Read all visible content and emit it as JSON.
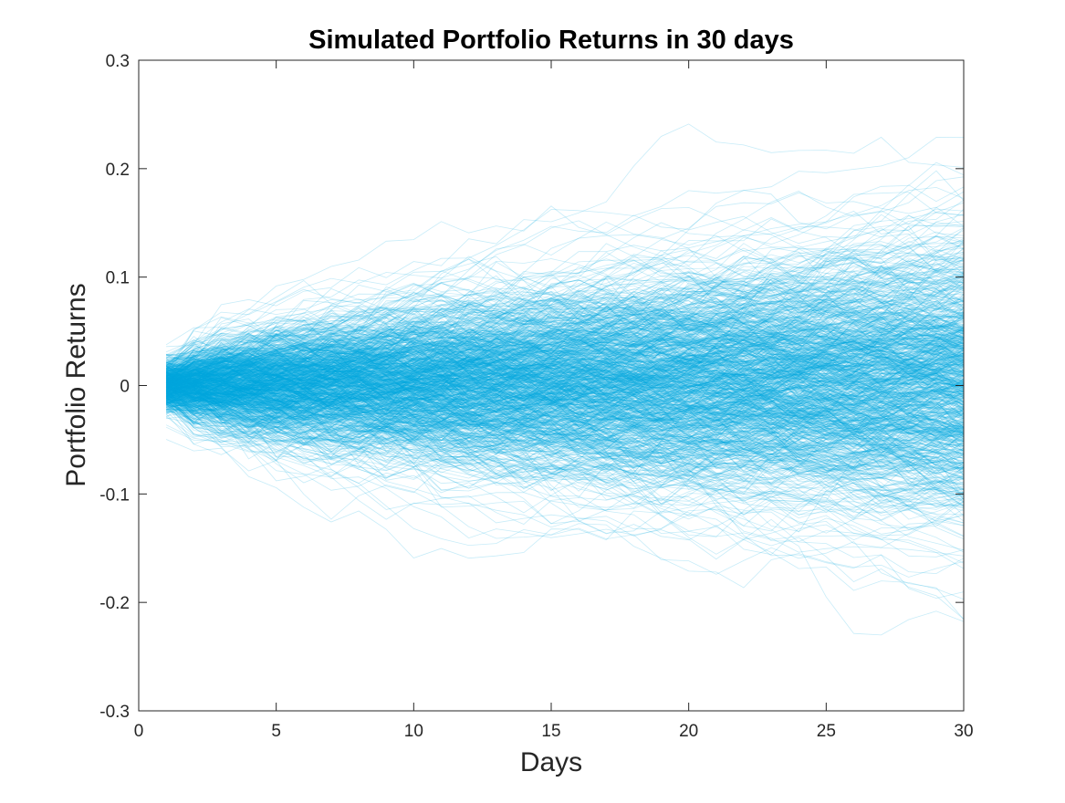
{
  "chart_data": {
    "type": "line",
    "title": "Simulated Portfolio Returns in 30 days",
    "xlabel": "Days",
    "ylabel": "Portfolio Returns",
    "xlim": [
      0,
      30
    ],
    "ylim": [
      -0.3,
      0.3
    ],
    "x_ticks": [
      0,
      5,
      10,
      15,
      20,
      25,
      30
    ],
    "y_ticks": [
      -0.3,
      -0.2,
      -0.1,
      0,
      0.1,
      0.2,
      0.3
    ],
    "x_tick_labels": [
      "0",
      "5",
      "10",
      "15",
      "20",
      "25",
      "30"
    ],
    "y_tick_labels": [
      "-0.3",
      "-0.2",
      "-0.1",
      "0",
      "0.1",
      "0.2",
      "0.3"
    ],
    "x": [
      1,
      2,
      3,
      4,
      5,
      6,
      7,
      8,
      9,
      10,
      11,
      12,
      13,
      14,
      15,
      16,
      17,
      18,
      19,
      20,
      21,
      22,
      23,
      24,
      25,
      26,
      27,
      28,
      29,
      30
    ],
    "series_count": 1000,
    "series_summary": {
      "start_value_range": [
        -0.04,
        0.04
      ],
      "daily_std": 0.012,
      "approx_envelope_day30": [
        -0.21,
        0.27
      ],
      "approx_mean": 0
    },
    "grid": false,
    "box": true,
    "line_color": "#00A8E1",
    "line_opacity": 0.22
  }
}
